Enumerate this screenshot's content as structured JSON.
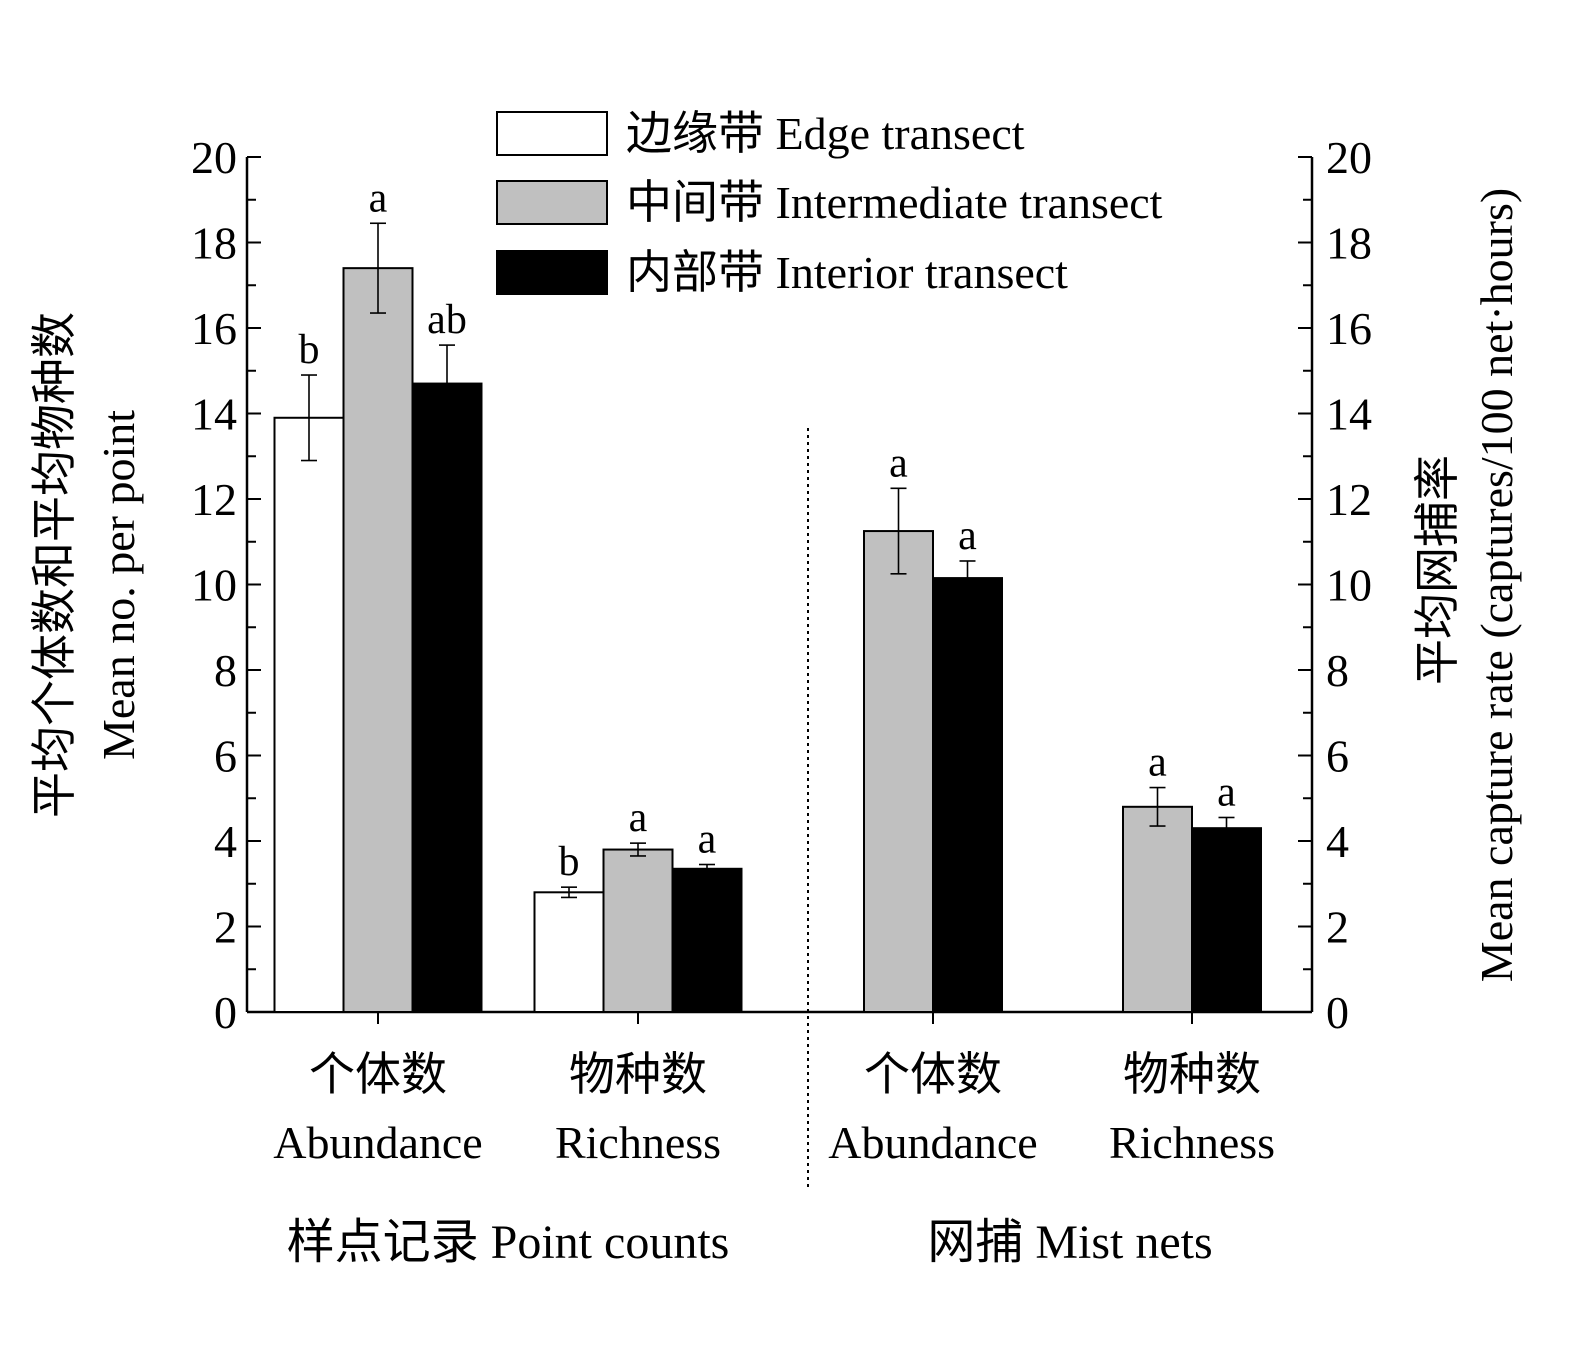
{
  "chart_data": {
    "type": "bar",
    "y_left": {
      "label_cn": "平均个体数和平均物种数",
      "label_en": "Mean no. per point",
      "ylim": [
        0,
        20
      ],
      "ticks": [
        "0",
        "2",
        "4",
        "6",
        "8",
        "10",
        "12",
        "14",
        "16",
        "18",
        "20"
      ]
    },
    "y_right": {
      "label_cn": "平均网捕率",
      "label_en": "Mean capture rate (captures/100 net·hours)",
      "ylim": [
        0,
        20
      ],
      "ticks": [
        "0",
        "2",
        "4",
        "6",
        "8",
        "10",
        "12",
        "14",
        "16",
        "18",
        "20"
      ]
    },
    "legend": {
      "placement": "top",
      "entries": [
        {
          "label": "边缘带 Edge transect",
          "color": "#ffffff"
        },
        {
          "label": "中间带 Intermediate transect",
          "color": "#c0c0c0"
        },
        {
          "label": "内部带 Interior transect",
          "color": "#000000"
        }
      ]
    },
    "groups": [
      {
        "label": "样点记录 Point counts",
        "categories": [
          {
            "label_cn": "个体数",
            "label_en": "Abundance",
            "bars": [
              {
                "series": 0,
                "value": 13.9,
                "error": 1.0,
                "sig": "b"
              },
              {
                "series": 1,
                "value": 17.4,
                "error": 1.05,
                "sig": "a"
              },
              {
                "series": 2,
                "value": 14.7,
                "error": 0.9,
                "sig": "ab"
              }
            ]
          },
          {
            "label_cn": "物种数",
            "label_en": "Richness",
            "bars": [
              {
                "series": 0,
                "value": 2.8,
                "error": 0.12,
                "sig": "b"
              },
              {
                "series": 1,
                "value": 3.8,
                "error": 0.15,
                "sig": "a"
              },
              {
                "series": 2,
                "value": 3.35,
                "error": 0.1,
                "sig": "a"
              }
            ]
          }
        ]
      },
      {
        "label": "网捕 Mist nets",
        "categories": [
          {
            "label_cn": "个体数",
            "label_en": "Abundance",
            "bars": [
              {
                "series": 1,
                "value": 11.25,
                "error": 1.0,
                "sig": "a"
              },
              {
                "series": 2,
                "value": 10.15,
                "error": 0.4,
                "sig": "a"
              }
            ]
          },
          {
            "label_cn": "物种数",
            "label_en": "Richness",
            "bars": [
              {
                "series": 1,
                "value": 4.8,
                "error": 0.45,
                "sig": "a"
              },
              {
                "series": 2,
                "value": 4.3,
                "error": 0.25,
                "sig": "a"
              }
            ]
          }
        ]
      }
    ]
  }
}
